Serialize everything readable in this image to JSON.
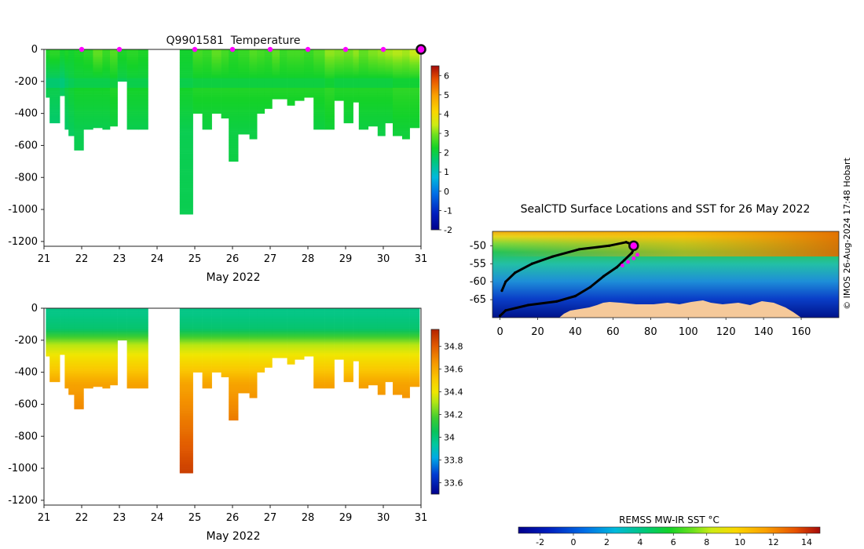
{
  "chart_data": [
    {
      "id": "temperature",
      "type": "heatmap",
      "title": "Q9901581  Temperature",
      "xlabel": "May 2022",
      "ylabel": "",
      "xlim": [
        21,
        31
      ],
      "ylim": [
        -1230,
        0
      ],
      "xticks": [
        "21",
        "22",
        "23",
        "24",
        "25",
        "26",
        "27",
        "28",
        "29",
        "30",
        "31"
      ],
      "yticks": [
        "0",
        "-200",
        "-400",
        "-600",
        "-800",
        "-1000",
        "-1200"
      ],
      "colorbar": {
        "min": -2.0,
        "max": 6.5,
        "ticks": [
          "-2",
          "-1",
          "0",
          "1",
          "2",
          "3",
          "4",
          "5",
          "6"
        ]
      },
      "surface_markers_day": [
        22.0,
        23.0,
        25.0,
        26.0,
        27.0,
        28.0,
        29.0,
        30.0
      ],
      "latest_marker_day": 31.0,
      "profiles": [
        {
          "day": 21.05,
          "depth": 300,
          "surface": 2.3,
          "deep": 1.6
        },
        {
          "day": 21.15,
          "depth": 460,
          "surface": 2.4,
          "deep": 1.6
        },
        {
          "day": 21.42,
          "depth": 290,
          "surface": 2.2,
          "deep": 1.5
        },
        {
          "day": 21.55,
          "depth": 500,
          "surface": 2.3,
          "deep": 1.7
        },
        {
          "day": 21.65,
          "depth": 540,
          "surface": 2.2,
          "deep": 1.8
        },
        {
          "day": 21.8,
          "depth": 630,
          "surface": 2.3,
          "deep": 1.9
        },
        {
          "day": 22.05,
          "depth": 500,
          "surface": 2.4,
          "deep": 1.9
        },
        {
          "day": 22.3,
          "depth": 490,
          "surface": 2.8,
          "deep": 1.9
        },
        {
          "day": 22.55,
          "depth": 500,
          "surface": 2.5,
          "deep": 1.9
        },
        {
          "day": 22.75,
          "depth": 480,
          "surface": 2.7,
          "deep": 2.0
        },
        {
          "day": 22.95,
          "depth": 200,
          "surface": 2.3,
          "deep": 1.8
        },
        {
          "day": 23.2,
          "depth": 500,
          "surface": 2.4,
          "deep": 1.9
        },
        {
          "day": 23.5,
          "depth": 500,
          "surface": 2.3,
          "deep": 1.9
        },
        {
          "day": 24.6,
          "depth": 1030,
          "surface": 2.2,
          "deep": 1.9
        },
        {
          "day": 24.95,
          "depth": 400,
          "surface": 2.6,
          "deep": 2.0
        },
        {
          "day": 25.2,
          "depth": 500,
          "surface": 2.5,
          "deep": 2.0
        },
        {
          "day": 25.45,
          "depth": 400,
          "surface": 2.8,
          "deep": 2.0
        },
        {
          "day": 25.7,
          "depth": 430,
          "surface": 2.6,
          "deep": 2.0
        },
        {
          "day": 25.9,
          "depth": 700,
          "surface": 2.4,
          "deep": 2.0
        },
        {
          "day": 26.15,
          "depth": 530,
          "surface": 2.5,
          "deep": 2.0
        },
        {
          "day": 26.45,
          "depth": 560,
          "surface": 2.7,
          "deep": 2.0
        },
        {
          "day": 26.65,
          "depth": 400,
          "surface": 2.6,
          "deep": 2.0
        },
        {
          "day": 26.85,
          "depth": 370,
          "surface": 2.5,
          "deep": 2.0
        },
        {
          "day": 27.05,
          "depth": 310,
          "surface": 2.8,
          "deep": 2.0
        },
        {
          "day": 27.25,
          "depth": 310,
          "surface": 2.5,
          "deep": 2.0
        },
        {
          "day": 27.45,
          "depth": 350,
          "surface": 2.6,
          "deep": 2.0
        },
        {
          "day": 27.65,
          "depth": 320,
          "surface": 2.6,
          "deep": 2.0
        },
        {
          "day": 27.9,
          "depth": 300,
          "surface": 2.5,
          "deep": 2.0
        },
        {
          "day": 28.15,
          "depth": 500,
          "surface": 2.7,
          "deep": 2.0
        },
        {
          "day": 28.45,
          "depth": 500,
          "surface": 3.1,
          "deep": 2.1
        },
        {
          "day": 28.7,
          "depth": 320,
          "surface": 3.0,
          "deep": 2.0
        },
        {
          "day": 28.95,
          "depth": 460,
          "surface": 2.9,
          "deep": 2.0
        },
        {
          "day": 29.2,
          "depth": 330,
          "surface": 3.1,
          "deep": 2.0
        },
        {
          "day": 29.35,
          "depth": 500,
          "surface": 2.8,
          "deep": 2.0
        },
        {
          "day": 29.6,
          "depth": 480,
          "surface": 3.0,
          "deep": 2.0
        },
        {
          "day": 29.85,
          "depth": 540,
          "surface": 3.1,
          "deep": 2.0
        },
        {
          "day": 30.05,
          "depth": 460,
          "surface": 3.2,
          "deep": 2.0
        },
        {
          "day": 30.25,
          "depth": 540,
          "surface": 3.3,
          "deep": 2.1
        },
        {
          "day": 30.5,
          "depth": 560,
          "surface": 3.2,
          "deep": 2.1
        },
        {
          "day": 30.7,
          "depth": 490,
          "surface": 3.4,
          "deep": 2.1
        }
      ]
    },
    {
      "id": "salinity",
      "type": "heatmap",
      "title": "",
      "xlabel": "May 2022",
      "ylabel": "",
      "xlim": [
        21,
        31
      ],
      "ylim": [
        -1230,
        0
      ],
      "xticks": [
        "21",
        "22",
        "23",
        "24",
        "25",
        "26",
        "27",
        "28",
        "29",
        "30",
        "31"
      ],
      "yticks": [
        "0",
        "-200",
        "-400",
        "-600",
        "-800",
        "-1000",
        "-1200"
      ],
      "colorbar": {
        "min": 33.5,
        "max": 34.95,
        "ticks": [
          "33.6",
          "33.8",
          "34",
          "34.2",
          "34.4",
          "34.6",
          "34.8"
        ]
      },
      "profiles": [
        {
          "day": 21.05,
          "depth": 300
        },
        {
          "day": 21.15,
          "depth": 460
        },
        {
          "day": 21.42,
          "depth": 290
        },
        {
          "day": 21.55,
          "depth": 500
        },
        {
          "day": 21.65,
          "depth": 540
        },
        {
          "day": 21.8,
          "depth": 630
        },
        {
          "day": 22.05,
          "depth": 500
        },
        {
          "day": 22.3,
          "depth": 490
        },
        {
          "day": 22.55,
          "depth": 500
        },
        {
          "day": 22.75,
          "depth": 480
        },
        {
          "day": 22.95,
          "depth": 200
        },
        {
          "day": 23.2,
          "depth": 500
        },
        {
          "day": 23.5,
          "depth": 500
        },
        {
          "day": 24.6,
          "depth": 1030
        },
        {
          "day": 24.95,
          "depth": 400
        },
        {
          "day": 25.2,
          "depth": 500
        },
        {
          "day": 25.45,
          "depth": 400
        },
        {
          "day": 25.7,
          "depth": 430
        },
        {
          "day": 25.9,
          "depth": 700
        },
        {
          "day": 26.15,
          "depth": 530
        },
        {
          "day": 26.45,
          "depth": 560
        },
        {
          "day": 26.65,
          "depth": 400
        },
        {
          "day": 26.85,
          "depth": 370
        },
        {
          "day": 27.05,
          "depth": 310
        },
        {
          "day": 27.25,
          "depth": 310
        },
        {
          "day": 27.45,
          "depth": 350
        },
        {
          "day": 27.65,
          "depth": 320
        },
        {
          "day": 27.9,
          "depth": 300
        },
        {
          "day": 28.15,
          "depth": 500
        },
        {
          "day": 28.45,
          "depth": 500
        },
        {
          "day": 28.7,
          "depth": 320
        },
        {
          "day": 28.95,
          "depth": 460
        },
        {
          "day": 29.2,
          "depth": 330
        },
        {
          "day": 29.35,
          "depth": 500
        },
        {
          "day": 29.6,
          "depth": 480
        },
        {
          "day": 29.85,
          "depth": 540
        },
        {
          "day": 30.05,
          "depth": 460
        },
        {
          "day": 30.25,
          "depth": 540
        },
        {
          "day": 30.5,
          "depth": 560
        },
        {
          "day": 30.7,
          "depth": 490
        }
      ]
    },
    {
      "id": "sst-map",
      "type": "heatmap",
      "title": "SealCTD Surface Locations and SST for 26 May 2022",
      "xlabel": "",
      "ylabel": "",
      "xlim": [
        -4,
        180
      ],
      "ylim": [
        -70,
        -46
      ],
      "xticks": [
        "0",
        "20",
        "40",
        "60",
        "80",
        "100",
        "120",
        "140",
        "160"
      ],
      "yticks": [
        "-50",
        "-55",
        "-60",
        "-65"
      ],
      "track_points": [
        [
          0,
          -69.5
        ],
        [
          3,
          -68
        ],
        [
          15,
          -66.5
        ],
        [
          30,
          -65.5
        ],
        [
          40,
          -64
        ],
        [
          48,
          -61.5
        ],
        [
          55,
          -58.5
        ],
        [
          62,
          -56
        ],
        [
          66,
          -54
        ],
        [
          70,
          -52
        ],
        [
          72,
          -50
        ],
        [
          67,
          -49
        ],
        [
          58,
          -50
        ],
        [
          42,
          -51
        ],
        [
          28,
          -53
        ],
        [
          17,
          -55
        ],
        [
          8,
          -57.5
        ],
        [
          3,
          -60
        ],
        [
          1,
          -62.5
        ]
      ],
      "recent_points": [
        [
          65,
          -55.5
        ],
        [
          68,
          -54.5
        ],
        [
          71,
          -53.5
        ],
        [
          73,
          -52.5
        ]
      ],
      "current_position": [
        71,
        -50
      ]
    },
    {
      "id": "sst-colorbar",
      "type": "heatmap",
      "title": "REMSS MW-IR SST °C",
      "range": [
        -3.3,
        14.8
      ],
      "ticks": [
        "-2",
        "0",
        "2",
        "4",
        "6",
        "8",
        "10",
        "12",
        "14"
      ]
    }
  ],
  "credit": "© IMOS 26-Aug-2024 17:48 Hobart"
}
